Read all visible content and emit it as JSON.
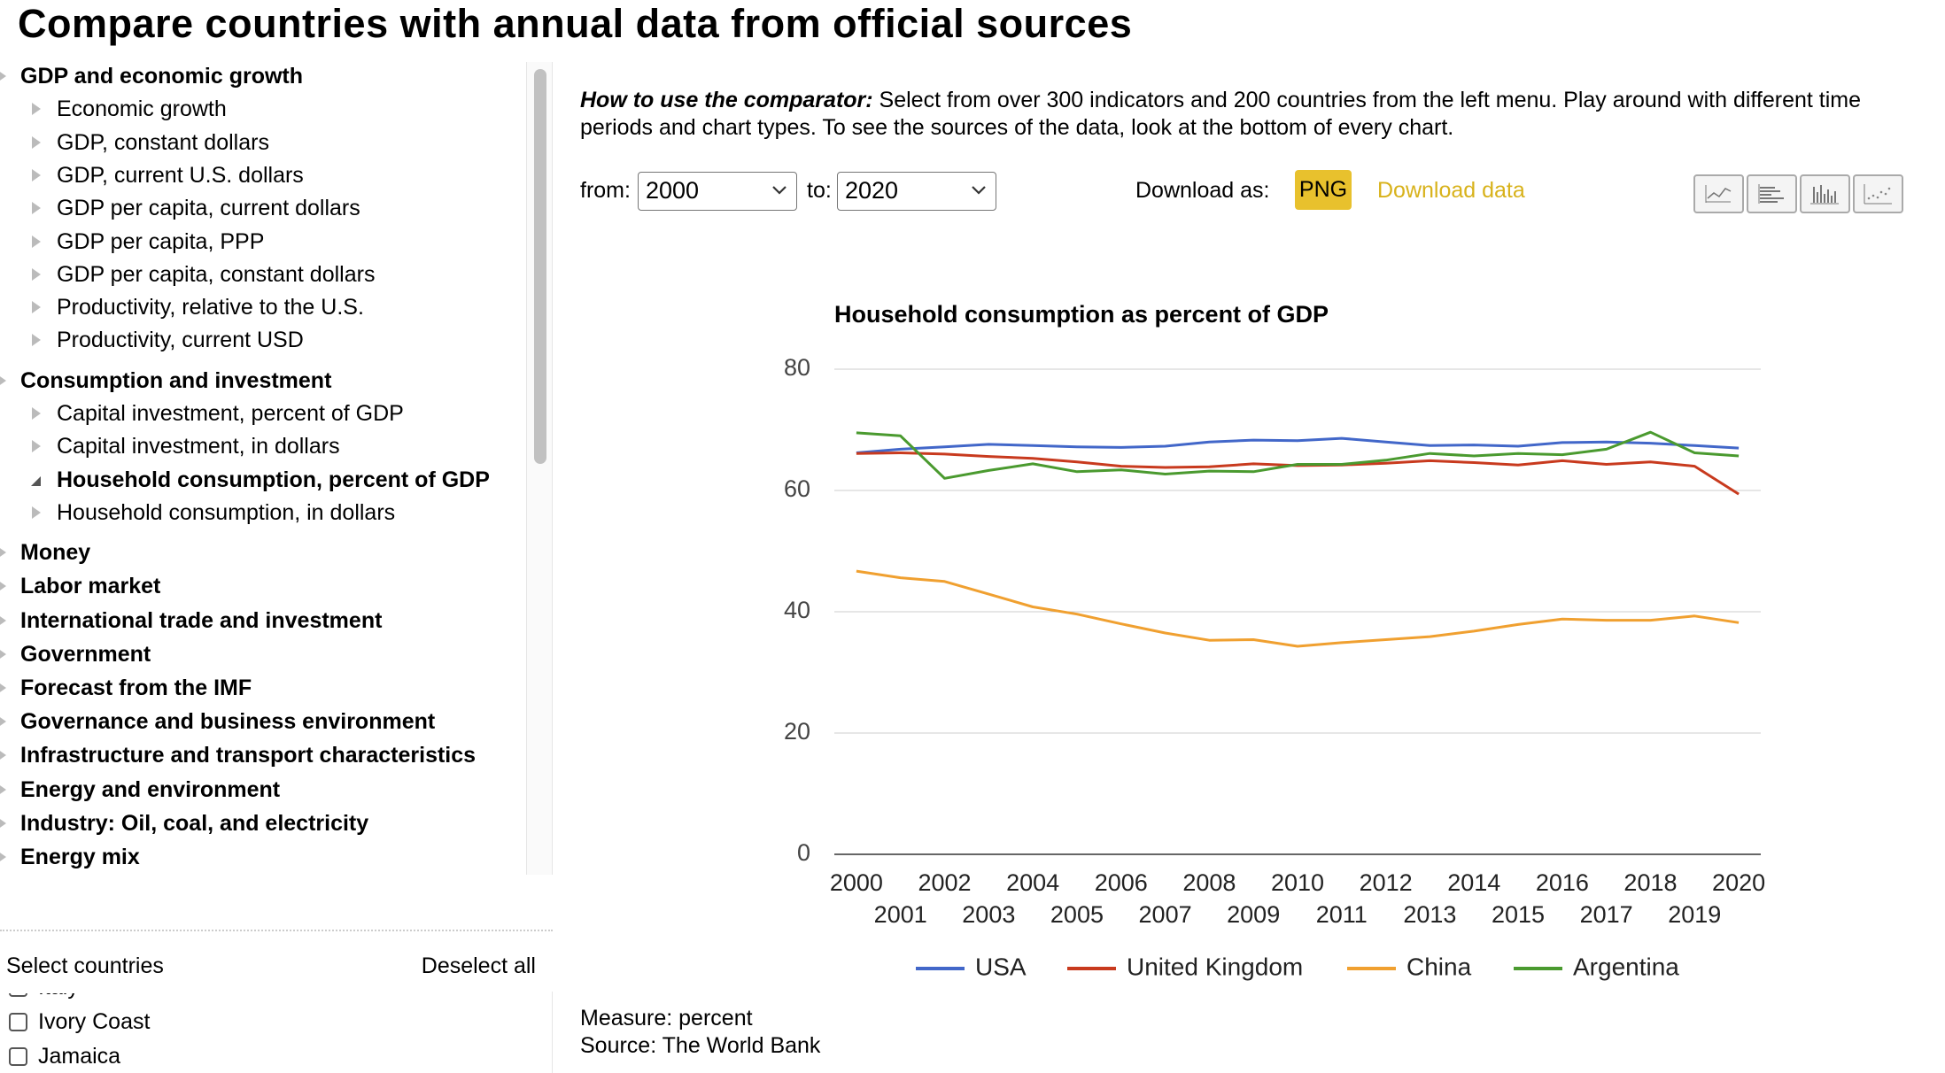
{
  "header": {
    "title": "Compare countries with annual data from official sources"
  },
  "menu": [
    {
      "label": "GDP and economic growth",
      "items": [
        {
          "label": "Economic growth"
        },
        {
          "label": "GDP, constant dollars"
        },
        {
          "label": "GDP, current U.S. dollars"
        },
        {
          "label": "GDP per capita, current dollars"
        },
        {
          "label": "GDP per capita, PPP"
        },
        {
          "label": "GDP per capita, constant dollars"
        },
        {
          "label": "Productivity, relative to the U.S."
        },
        {
          "label": "Productivity, current USD"
        }
      ]
    },
    {
      "label": "Consumption and investment",
      "items": [
        {
          "label": "Capital investment, percent of GDP"
        },
        {
          "label": "Capital investment, in dollars"
        },
        {
          "label": "Household consumption, percent of GDP",
          "selected": true
        },
        {
          "label": "Household consumption, in dollars"
        }
      ]
    },
    {
      "label": "Money",
      "items": []
    },
    {
      "label": "Labor market",
      "items": []
    },
    {
      "label": "International trade and investment",
      "items": []
    },
    {
      "label": "Government",
      "items": []
    },
    {
      "label": "Forecast from the IMF",
      "items": []
    },
    {
      "label": "Governance and business environment",
      "items": []
    },
    {
      "label": "Infrastructure and transport characteristics",
      "items": []
    },
    {
      "label": "Energy and environment",
      "items": []
    },
    {
      "label": "Industry: Oil, coal, and electricity",
      "items": []
    },
    {
      "label": "Energy mix",
      "items": []
    }
  ],
  "countries": {
    "title": "Select countries",
    "deselect": "Deselect all",
    "list": [
      "Italy",
      "Ivory Coast",
      "Jamaica"
    ]
  },
  "intro": {
    "lead": "How to use the comparator:",
    "text": "Select from over 300 indicators and 200 countries from the left menu. Play around with different time periods and chart types. To see the sources of the data, look at the bottom of every chart."
  },
  "controls": {
    "from_label": "from:",
    "from": "2000",
    "to_label": "to:",
    "to": "2020",
    "download_label": "Download as:",
    "png": "PNG",
    "download_data": "Download data"
  },
  "chart_data": {
    "type": "line",
    "title": "Household consumption as percent of GDP",
    "x": [
      2000,
      2001,
      2002,
      2003,
      2004,
      2005,
      2006,
      2007,
      2008,
      2009,
      2010,
      2011,
      2012,
      2013,
      2014,
      2015,
      2016,
      2017,
      2018,
      2019,
      2020
    ],
    "xlim": [
      1999.5,
      2020.5
    ],
    "xticks": [
      2000,
      2001,
      2002,
      2003,
      2004,
      2005,
      2006,
      2007,
      2008,
      2009,
      2010,
      2011,
      2012,
      2013,
      2014,
      2015,
      2016,
      2017,
      2018,
      2019,
      2020
    ],
    "ylim": [
      0,
      80
    ],
    "yticks": [
      0,
      20,
      40,
      60,
      80
    ],
    "grid": true,
    "series": [
      {
        "name": "USA",
        "color": "#4267c9",
        "values": [
          66.2,
          66.8,
          67.2,
          67.6,
          67.4,
          67.2,
          67.1,
          67.3,
          68.0,
          68.3,
          68.2,
          68.6,
          68.0,
          67.4,
          67.5,
          67.3,
          67.9,
          68.0,
          67.8,
          67.4,
          67.0
        ]
      },
      {
        "name": "United Kingdom",
        "color": "#c83a1e",
        "values": [
          66.1,
          66.2,
          66.0,
          65.6,
          65.3,
          64.7,
          64.0,
          63.8,
          63.9,
          64.4,
          64.1,
          64.2,
          64.5,
          64.9,
          64.6,
          64.2,
          64.9,
          64.3,
          64.7,
          64.0,
          59.4
        ]
      },
      {
        "name": "China",
        "color": "#f0a030",
        "values": [
          46.7,
          45.6,
          45.0,
          42.9,
          40.8,
          39.6,
          38.0,
          36.5,
          35.3,
          35.4,
          34.3,
          34.9,
          35.4,
          35.9,
          36.8,
          37.9,
          38.8,
          38.6,
          38.6,
          39.3,
          38.2
        ]
      },
      {
        "name": "Argentina",
        "color": "#4a9a2f",
        "values": [
          69.5,
          69.0,
          62.0,
          63.3,
          64.4,
          63.1,
          63.4,
          62.7,
          63.2,
          63.1,
          64.3,
          64.3,
          65.0,
          66.1,
          65.7,
          66.1,
          65.9,
          66.8,
          69.6,
          66.2,
          65.7
        ]
      }
    ]
  },
  "footer": {
    "measure": "Measure: percent",
    "source": "Source: The World Bank"
  }
}
